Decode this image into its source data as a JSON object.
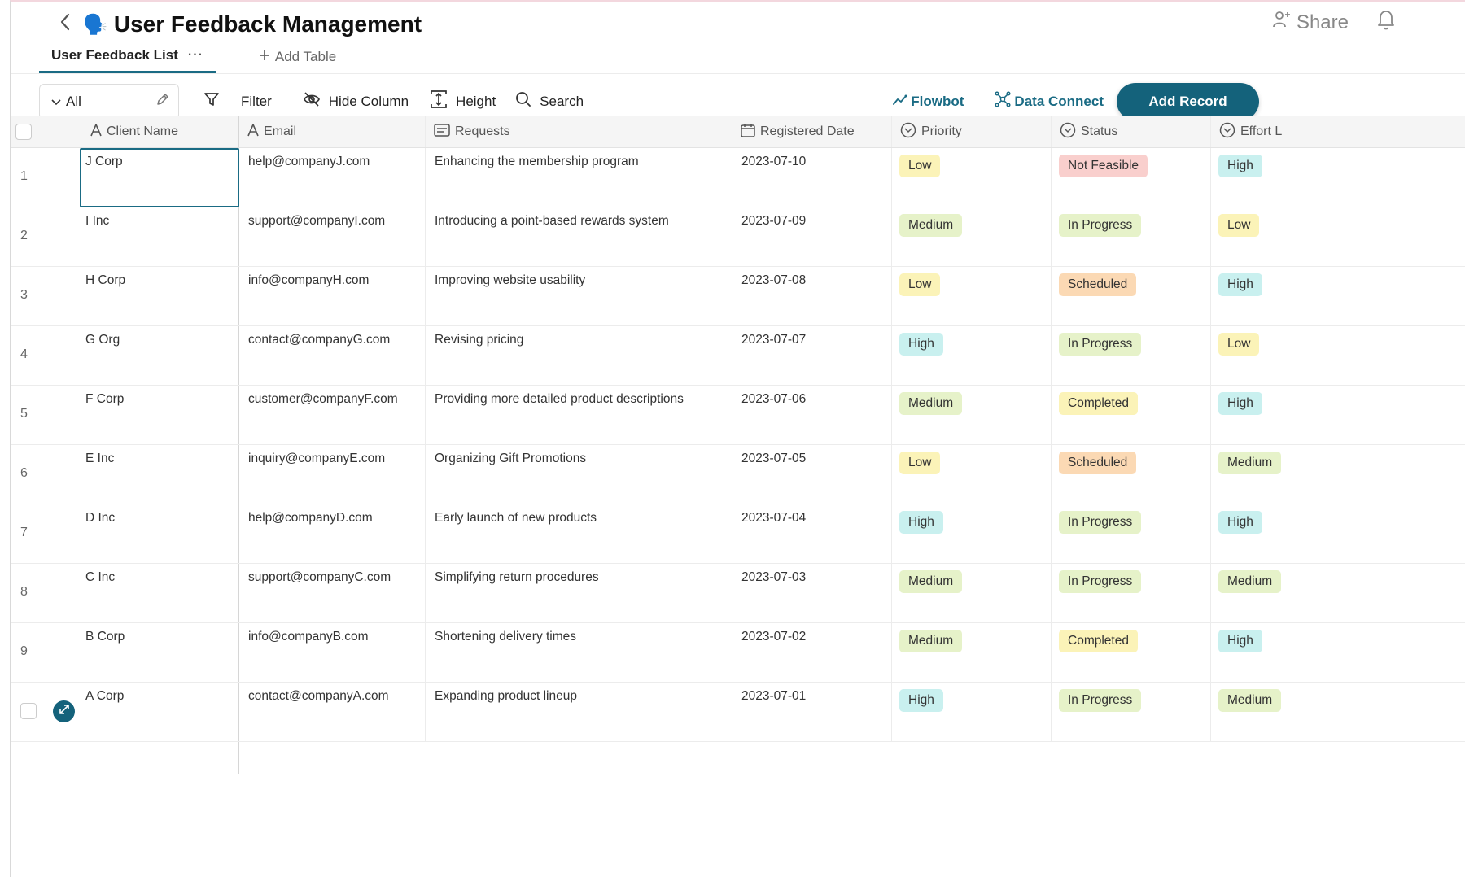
{
  "header": {
    "emoji": "🗣️",
    "title": "User Feedback Management",
    "share_label": "Share"
  },
  "tabs": {
    "active_label": "User Feedback List",
    "more_label": "···",
    "add_table_label": "Add Table"
  },
  "toolbar": {
    "view_label": "All",
    "filter_label": "Filter",
    "hide_column_label": "Hide Column",
    "height_label": "Height",
    "search_label": "Search",
    "flowbot_label": "Flowbot",
    "data_connect_label": "Data Connect",
    "add_record_label": "Add Record"
  },
  "columns": {
    "client_name": "Client Name",
    "email": "Email",
    "requests": "Requests",
    "registered_date": "Registered Date",
    "priority": "Priority",
    "status": "Status",
    "effort": "Effort L"
  },
  "colors": {
    "accent": "#14627b",
    "badge_low_bg": "#fbf3b8",
    "badge_medium_bg": "#e6f2c9",
    "badge_high_bg": "#c9f0ef",
    "badge_not_feasible_bg": "#f9cfcd",
    "badge_in_progress_bg": "#e6f2c9",
    "badge_scheduled_bg": "#fbd9b4",
    "badge_completed_bg": "#fbf3b8"
  },
  "rows": [
    {
      "num": "1",
      "client": "J Corp",
      "email": "help@companyJ.com",
      "request": "Enhancing the membership program",
      "date": "2023-07-10",
      "priority": "Low",
      "status": "Not Feasible",
      "effort": "High"
    },
    {
      "num": "2",
      "client": "I Inc",
      "email": "support@companyI.com",
      "request": "Introducing a point-based rewards system",
      "date": "2023-07-09",
      "priority": "Medium",
      "status": "In Progress",
      "effort": "Low"
    },
    {
      "num": "3",
      "client": "H Corp",
      "email": "info@companyH.com",
      "request": "Improving website usability",
      "date": "2023-07-08",
      "priority": "Low",
      "status": "Scheduled",
      "effort": "High"
    },
    {
      "num": "4",
      "client": "G Org",
      "email": "contact@companyG.com",
      "request": "Revising pricing",
      "date": "2023-07-07",
      "priority": "High",
      "status": "In Progress",
      "effort": "Low"
    },
    {
      "num": "5",
      "client": "F Corp",
      "email": "customer@companyF.com",
      "request": "Providing more detailed product descriptions",
      "date": "2023-07-06",
      "priority": "Medium",
      "status": "Completed",
      "effort": "High"
    },
    {
      "num": "6",
      "client": "E Inc",
      "email": "inquiry@companyE.com",
      "request": "Organizing Gift Promotions",
      "date": "2023-07-05",
      "priority": "Low",
      "status": "Scheduled",
      "effort": "Medium"
    },
    {
      "num": "7",
      "client": "D Inc",
      "email": "help@companyD.com",
      "request": "Early launch of new products",
      "date": "2023-07-04",
      "priority": "High",
      "status": "In Progress",
      "effort": "High"
    },
    {
      "num": "8",
      "client": "C Inc",
      "email": "support@companyC.com",
      "request": "Simplifying return procedures",
      "date": "2023-07-03",
      "priority": "Medium",
      "status": "In Progress",
      "effort": "Medium"
    },
    {
      "num": "9",
      "client": "B Corp",
      "email": "info@companyB.com",
      "request": "Shortening delivery times",
      "date": "2023-07-02",
      "priority": "Medium",
      "status": "Completed",
      "effort": "High"
    },
    {
      "num": "",
      "client": "A Corp",
      "email": "contact@companyA.com",
      "request": "Expanding product lineup",
      "date": "2023-07-01",
      "priority": "High",
      "status": "In Progress",
      "effort": "Medium"
    }
  ]
}
